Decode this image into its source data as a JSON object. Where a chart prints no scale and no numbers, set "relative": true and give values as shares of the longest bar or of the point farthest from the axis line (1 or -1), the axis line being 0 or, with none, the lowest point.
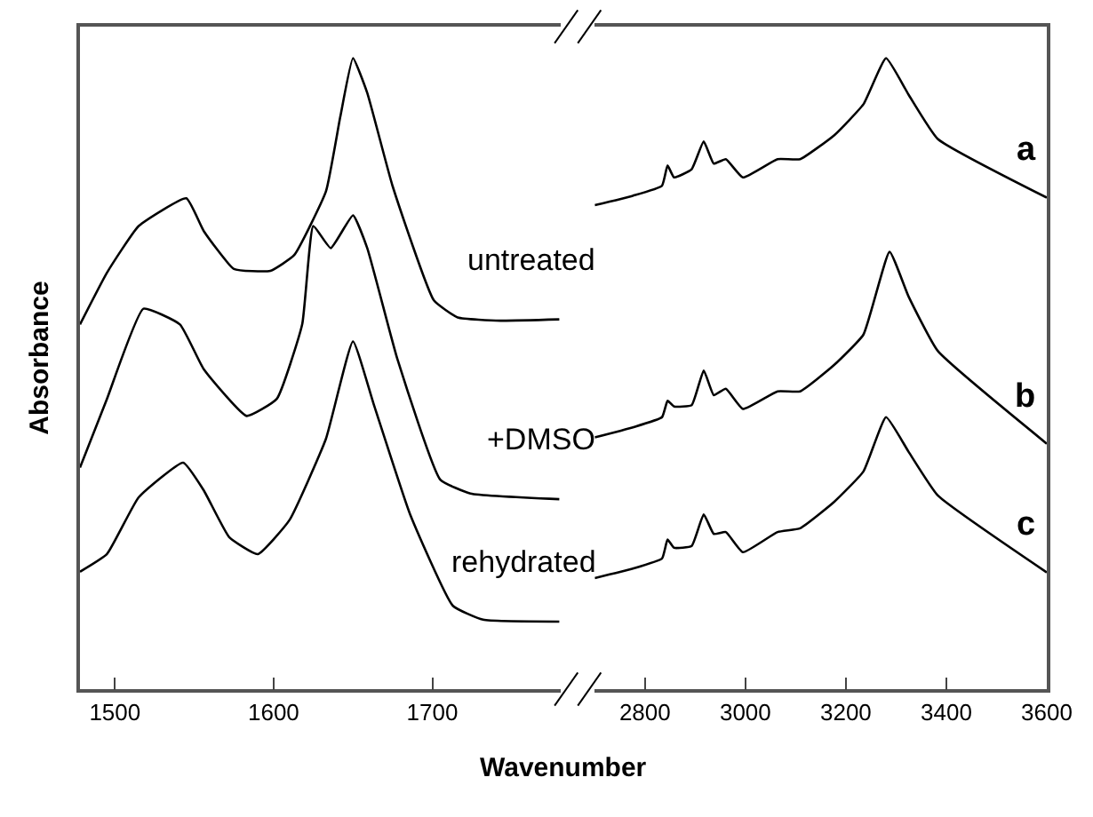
{
  "chart_data": [
    {
      "type": "line",
      "relative": true,
      "ylabel": "Absorbance",
      "xlabel": "Wavenumber",
      "xlim": [
        1478,
        1781
      ],
      "xticks": [
        1500,
        1600,
        1700
      ],
      "tick_labels": "x",
      "marker": "none",
      "line_style": "solid",
      "series": [
        {
          "name": "untreated",
          "color": "#000000",
          "x": [
            1478,
            1495,
            1515,
            1545,
            1556,
            1575,
            1598,
            1613,
            1633,
            1642,
            1650,
            1659,
            1675,
            1701,
            1716,
            1743,
            1780
          ],
          "values": [
            0.578,
            0.66,
            0.734,
            0.778,
            0.726,
            0.666,
            0.663,
            0.688,
            0.789,
            0.907,
            1.0,
            0.945,
            0.797,
            0.616,
            0.589,
            0.584,
            0.586
          ]
        },
        {
          "name": "+DMSO",
          "color": "#000000",
          "x": [
            1478,
            1495,
            1518,
            1541,
            1556,
            1583,
            1602,
            1618,
            1625,
            1636,
            1650,
            1659,
            1678,
            1705,
            1724,
            1780
          ],
          "values": [
            0.351,
            0.46,
            0.603,
            0.578,
            0.507,
            0.433,
            0.46,
            0.578,
            0.734,
            0.699,
            0.751,
            0.699,
            0.523,
            0.332,
            0.31,
            0.301
          ]
        },
        {
          "name": "rehydrated",
          "color": "#000000",
          "x": [
            1478,
            1495,
            1515,
            1543,
            1556,
            1572,
            1590,
            1610,
            1633,
            1650,
            1663,
            1686,
            1713,
            1732,
            1780
          ],
          "values": [
            0.186,
            0.214,
            0.304,
            0.359,
            0.315,
            0.241,
            0.214,
            0.268,
            0.397,
            0.551,
            0.452,
            0.277,
            0.132,
            0.11,
            0.107
          ]
        }
      ]
    },
    {
      "type": "line",
      "relative": true,
      "xlim": [
        2700,
        3600
      ],
      "xticks": [
        2800,
        3000,
        3200,
        3400,
        3600
      ],
      "tick_labels": "x",
      "marker": "none",
      "line_style": "solid",
      "series": [
        {
          "name": "a",
          "color": "#000000",
          "x": [
            2700,
            2776,
            2834,
            2845,
            2858,
            2893,
            2917,
            2937,
            2961,
            2995,
            3064,
            3109,
            3177,
            3235,
            3280,
            3325,
            3383,
            3600
          ],
          "values": [
            0.767,
            0.782,
            0.798,
            0.83,
            0.811,
            0.824,
            0.868,
            0.833,
            0.84,
            0.811,
            0.84,
            0.84,
            0.878,
            0.927,
            1.0,
            0.942,
            0.872,
            0.779
          ]
        },
        {
          "name": "b",
          "color": "#000000",
          "x": [
            2700,
            2776,
            2834,
            2845,
            2858,
            2893,
            2917,
            2937,
            2961,
            2995,
            3064,
            3109,
            3177,
            3235,
            3287,
            3325,
            3383,
            3600
          ],
          "values": [
            0.399,
            0.415,
            0.431,
            0.457,
            0.448,
            0.45,
            0.505,
            0.466,
            0.476,
            0.444,
            0.472,
            0.472,
            0.514,
            0.562,
            0.693,
            0.622,
            0.536,
            0.389
          ]
        },
        {
          "name": "c",
          "color": "#000000",
          "x": [
            2700,
            2776,
            2834,
            2845,
            2858,
            2893,
            2917,
            2937,
            2961,
            2995,
            3064,
            3109,
            3177,
            3235,
            3280,
            3325,
            3383,
            3600
          ],
          "values": [
            0.176,
            0.191,
            0.207,
            0.237,
            0.224,
            0.227,
            0.277,
            0.246,
            0.249,
            0.217,
            0.249,
            0.255,
            0.297,
            0.345,
            0.431,
            0.376,
            0.307,
            0.185
          ]
        }
      ]
    }
  ]
}
